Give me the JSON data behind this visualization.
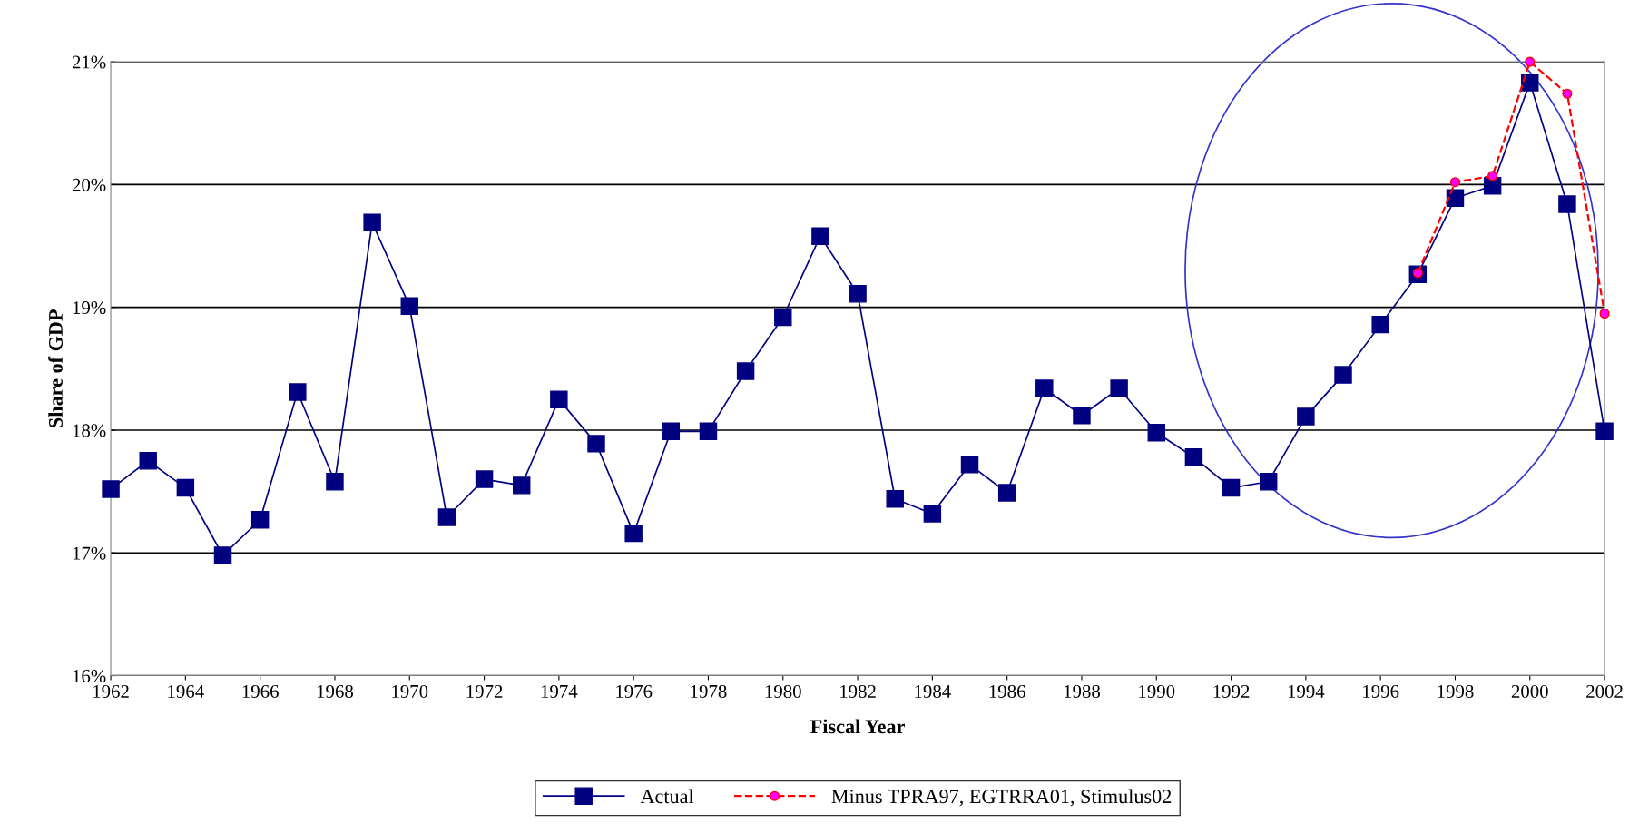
{
  "chart_data": {
    "type": "line",
    "xlabel": "Fiscal Year",
    "ylabel": "Share of GDP",
    "x": [
      1962,
      1963,
      1964,
      1965,
      1966,
      1967,
      1968,
      1969,
      1970,
      1971,
      1972,
      1973,
      1974,
      1975,
      1976,
      1977,
      1978,
      1979,
      1980,
      1981,
      1982,
      1983,
      1984,
      1985,
      1986,
      1987,
      1988,
      1989,
      1990,
      1991,
      1992,
      1993,
      1994,
      1995,
      1996,
      1997,
      1998,
      1999,
      2000,
      2001,
      2002
    ],
    "series": [
      {
        "name": "Actual",
        "color": "#000080",
        "marker": "square",
        "line_style": "solid",
        "values": [
          17.52,
          17.75,
          17.53,
          16.98,
          17.27,
          18.31,
          17.58,
          19.69,
          19.01,
          17.29,
          17.6,
          17.55,
          18.25,
          17.89,
          17.16,
          17.99,
          17.99,
          18.48,
          18.92,
          19.58,
          19.11,
          17.44,
          17.32,
          17.72,
          17.49,
          18.34,
          18.12,
          18.34,
          17.98,
          17.78,
          17.53,
          17.58,
          18.11,
          18.45,
          18.86,
          19.27,
          19.89,
          19.99,
          20.83,
          19.84,
          17.99
        ]
      },
      {
        "name": "Minus TPRA97, EGTRRA01, Stimulus02",
        "color": "#ff0000",
        "marker": "circle",
        "line_style": "dashed",
        "x": [
          1997,
          1998,
          1999,
          2000,
          2001,
          2002
        ],
        "values": [
          19.28,
          20.02,
          20.07,
          21.0,
          20.74,
          18.95
        ]
      }
    ],
    "xlim": [
      1962,
      2002
    ],
    "xticks": [
      1962,
      1964,
      1966,
      1968,
      1970,
      1972,
      1974,
      1976,
      1978,
      1980,
      1982,
      1984,
      1986,
      1988,
      1990,
      1992,
      1994,
      1996,
      1998,
      2000,
      2002
    ],
    "ylim": [
      16,
      21
    ],
    "yticks": [
      {
        "value": 16,
        "label": "16%"
      },
      {
        "value": 17,
        "label": "17%"
      },
      {
        "value": 18,
        "label": "18%"
      },
      {
        "value": 19,
        "label": "19%"
      },
      {
        "value": 20,
        "label": "20%"
      },
      {
        "value": 21,
        "label": "21%"
      }
    ],
    "grid": "y",
    "legend": "bottom"
  }
}
